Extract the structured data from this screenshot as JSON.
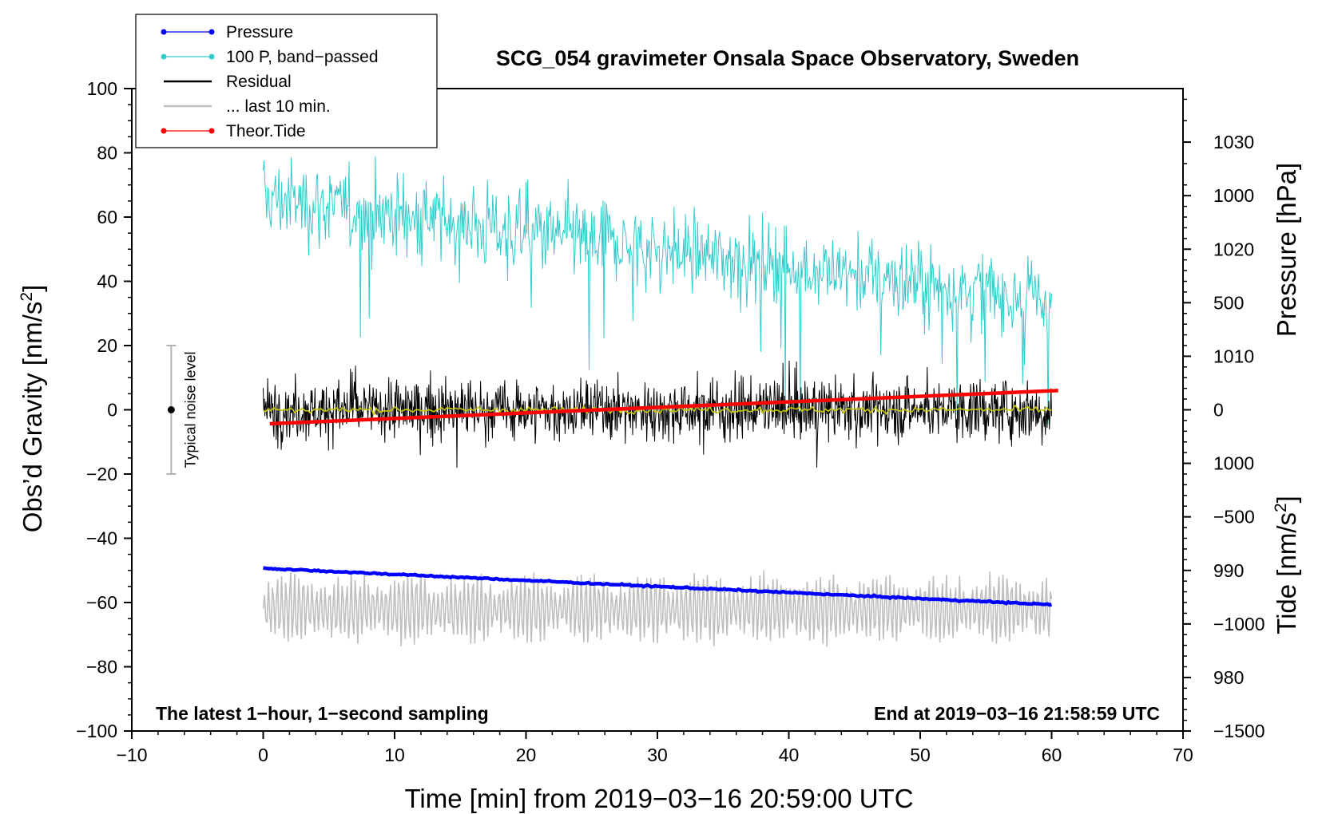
{
  "chart_data": {
    "type": "line",
    "title": "SCG_054 gravimeter Onsala Space Observatory, Sweden",
    "xlabel": "Time [min] from 2019−03−16 20:59:00 UTC",
    "ylabel_left": "Obs’d Gravity [nm/s",
    "ylabel_left_sup": "2",
    "ylabel_left_end": "]",
    "ylabel_right_pressure": "Pressure [hPa]",
    "ylabel_right_tide": "Tide [nm/s",
    "ylabel_right_tide_sup": "2",
    "ylabel_right_tide_end": "]",
    "xlim": [
      -10,
      70
    ],
    "ylim_left": [
      -100,
      100
    ],
    "pressure_lim": [
      975,
      1035
    ],
    "tide_lim": [
      -1500,
      1500
    ],
    "x_ticks": [
      "−10",
      "0",
      "10",
      "20",
      "30",
      "40",
      "50",
      "60",
      "70"
    ],
    "x_tick_values": [
      -10,
      0,
      10,
      20,
      30,
      40,
      50,
      60,
      70
    ],
    "y_left_ticks": [
      "100",
      "80",
      "60",
      "40",
      "20",
      "0",
      "−20",
      "−40",
      "−60",
      "−80",
      "−100"
    ],
    "y_left_tick_values": [
      100,
      80,
      60,
      40,
      20,
      0,
      -20,
      -40,
      -60,
      -80,
      -100
    ],
    "pressure_ticks": [
      "1030",
      "1020",
      "1010",
      "1000",
      "990",
      "980"
    ],
    "pressure_tick_values": [
      1030,
      1020,
      1010,
      1000,
      990,
      980
    ],
    "tide_ticks": [
      "1000",
      "500",
      "0",
      "−500",
      "−1000",
      "−1500"
    ],
    "tide_tick_values": [
      1000,
      500,
      0,
      -500,
      -1000,
      -1500
    ],
    "grid": false,
    "legend_position": "top-left",
    "legend": [
      {
        "label": "Pressure",
        "color": "#0000ff",
        "marker": true
      },
      {
        "label": "100 P, band−passed",
        "color": "#33cccc",
        "marker": true
      },
      {
        "label": "Residual",
        "color": "#000000",
        "marker": false
      },
      {
        "label": "... last 10 min.",
        "color": "#bfbfbf",
        "marker": false
      },
      {
        "label": "Theor.Tide",
        "color": "#ff0000",
        "marker": true
      }
    ],
    "annotations": {
      "bottom_left": "The latest 1−hour, 1−second sampling",
      "bottom_right": "End at 2019−03−16 21:58:59 UTC",
      "noise_label": "Typical noise level"
    },
    "noise_bar": {
      "x": -7,
      "center": 0,
      "low": -20,
      "high": 20
    },
    "series": [
      {
        "name": "Pressure",
        "axis": "pressure",
        "color": "#0000ff",
        "x": [
          0,
          60
        ],
        "y": [
          990.2,
          986.8
        ]
      },
      {
        "name": "100 P, band-passed",
        "axis": "gravity",
        "color": "#33cccc",
        "x_range": [
          0,
          60
        ],
        "trend": [
          66,
          34
        ],
        "amplitude": 10
      },
      {
        "name": "Residual",
        "axis": "gravity",
        "color": "#000000",
        "x_range": [
          0,
          60
        ],
        "trend": [
          0,
          0
        ],
        "amplitude": 11
      },
      {
        "name": "Residual smoothed",
        "axis": "gravity",
        "color": "#c8c800",
        "x_range": [
          0,
          60
        ],
        "trend": [
          0,
          0
        ],
        "amplitude": 1
      },
      {
        "name": "... last 10 min.",
        "axis": "gravity",
        "color": "#bfbfbf",
        "x_range": [
          0,
          60
        ],
        "trend": [
          -62,
          -62
        ],
        "amplitude": 12
      },
      {
        "name": "Theor.Tide",
        "axis": "tide",
        "color": "#ff0000",
        "x": [
          0.5,
          60.5
        ],
        "y": [
          -65,
          90
        ]
      }
    ]
  }
}
